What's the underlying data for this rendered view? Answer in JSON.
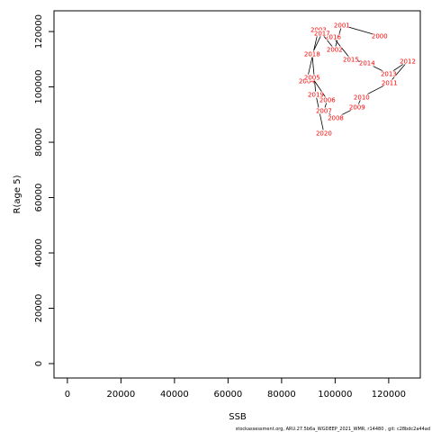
{
  "chart_data": {
    "type": "line",
    "x_label": "SSB",
    "y_label": "R(age 5)",
    "footer": "stockassessment.org, ARU.27.5b6a_WGDEEP_2021_WMR, r14480 , git: c28bdc2a44ad",
    "x": [
      116600,
      102500,
      99800,
      93800,
      89400,
      91400,
      97100,
      95800,
      100200,
      108200,
      109900,
      120300,
      127100,
      120000,
      111900,
      105900,
      99200,
      95100,
      91400,
      92800,
      95800
    ],
    "values": [
      118400,
      122300,
      113500,
      120700,
      102100,
      103400,
      95300,
      91400,
      88800,
      92700,
      96300,
      101500,
      109300,
      104700,
      108600,
      109900,
      118000,
      119400,
      111900,
      97200,
      83300
    ],
    "point_labels": [
      "2000",
      "2001",
      "2002",
      "2003",
      "2004",
      "2005",
      "2006",
      "2007",
      "2008",
      "2009",
      "2010",
      "2011",
      "2012",
      "2013",
      "2014",
      "2015",
      "2016",
      "2017",
      "2018",
      "2019",
      "2020"
    ],
    "line_color": "#000000",
    "label_color": "#ff0000",
    "xlim": [
      -5000,
      131800
    ],
    "ylim": [
      -5200,
      127500
    ],
    "xticks": [
      0,
      20000,
      40000,
      60000,
      80000,
      100000,
      120000
    ],
    "yticks": [
      0,
      20000,
      40000,
      60000,
      80000,
      100000,
      120000
    ]
  }
}
